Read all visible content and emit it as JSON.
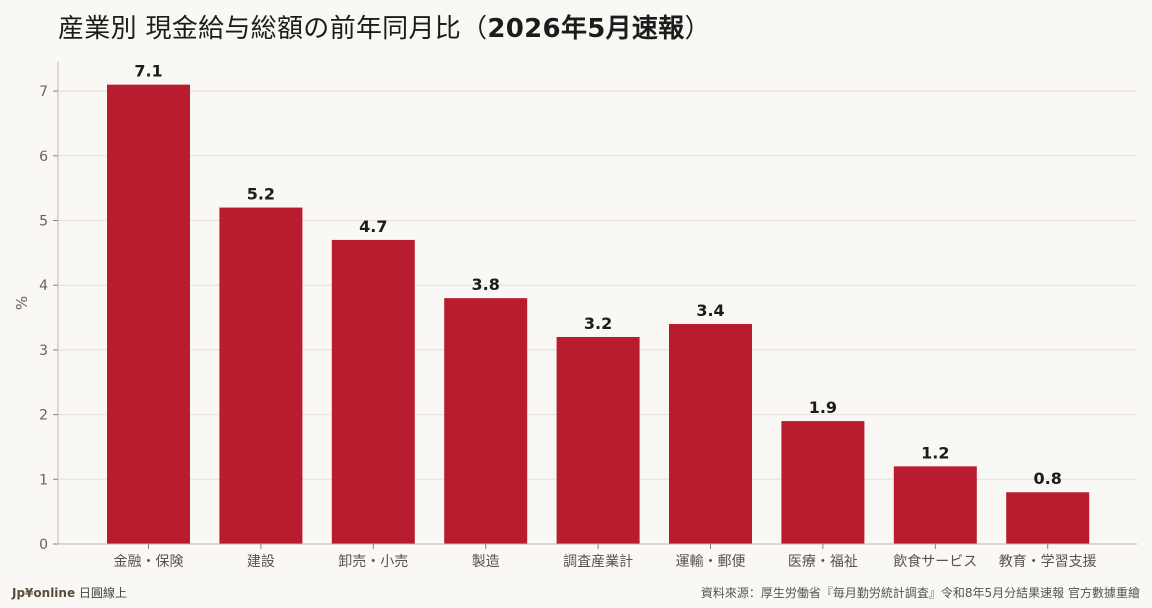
{
  "header": {
    "title_prefix": "産業別 現金給与総額の前年同月比（",
    "title_bold": "2026年5月速報",
    "title_suffix": "）"
  },
  "chart_data": {
    "type": "bar",
    "categories": [
      "金融・保険",
      "建設",
      "卸売・小売",
      "製造",
      "調査産業計",
      "運輸・郵便",
      "医療・福祉",
      "飲食サービス",
      "教育・学習支援"
    ],
    "values": [
      7.1,
      5.2,
      4.7,
      3.8,
      3.2,
      3.4,
      1.9,
      1.2,
      0.8
    ],
    "data_labels": [
      "7.1",
      "5.2",
      "4.7",
      "3.8",
      "3.2",
      "3.4",
      "1.9",
      "1.2",
      "0.8"
    ],
    "ylabel": "%",
    "ylim": [
      0,
      7.45
    ],
    "yticks": [
      0,
      1,
      2,
      3,
      4,
      5,
      6,
      7
    ],
    "grid": true,
    "bar_color": "#b81c2e"
  },
  "footer": {
    "brand": "Jp¥online",
    "brand_suffix": " 日圓線上",
    "source": "資料來源：厚生労働省『毎月勤労統計調査』令和8年5月分結果速報 官方數據重繪"
  }
}
